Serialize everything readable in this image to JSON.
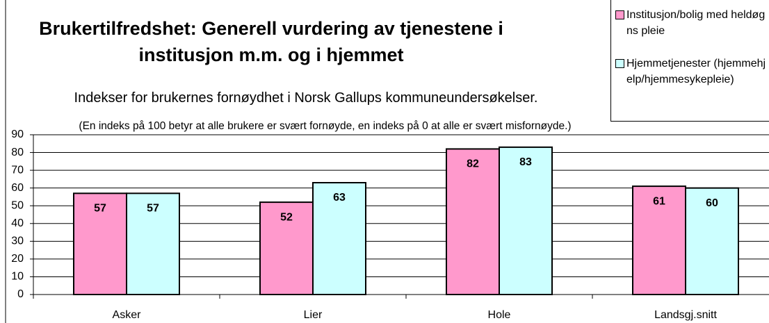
{
  "chart_data": {
    "type": "bar",
    "title": "Brukertilfredshet: Generell vurdering av tjenestene i institusjon m.m. og i hjemmet",
    "subtitle": "Indekser for brukernes fornøydhet i Norsk Gallups kommuneundersøkelser.",
    "note": "(En indeks på 100 betyr at alle brukere er svært fornøyde, en indeks på 0 at alle er svært misfornøyde.)",
    "categories": [
      "Asker",
      "Lier",
      "Hole",
      "Landsgj.snitt"
    ],
    "series": [
      {
        "name": "Institusjon/bolig med heldøgns pleie",
        "color": "#ff99cc",
        "values": [
          57,
          52,
          82,
          61
        ]
      },
      {
        "name": "Hjemmetjenester (hjemmehjelp/hjemmesykepleie)",
        "color": "#ccffff",
        "values": [
          57,
          63,
          83,
          60
        ]
      }
    ],
    "ylim": [
      0,
      90
    ],
    "yticks": [
      0,
      10,
      20,
      30,
      40,
      50,
      60,
      70,
      80,
      90
    ],
    "grid": true
  }
}
